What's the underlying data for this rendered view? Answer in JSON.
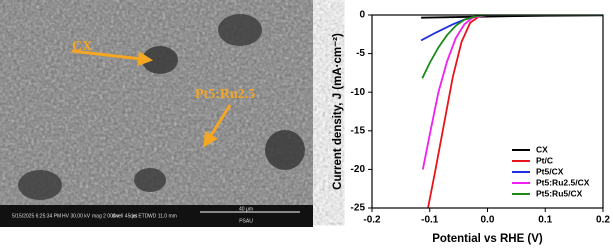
{
  "image": {
    "labels": [
      "CX",
      "Pt5:Ru2.5"
    ],
    "info": [
      "5/15/2025 6:25:34 PM",
      "HV 30.00 kV",
      "mag 2 000 x",
      "dwell 45 μs",
      "det ETD",
      "WD 11.0 mm",
      "40 μm",
      "PSAU"
    ]
  },
  "chart_data": {
    "type": "line",
    "xlabel": "Potential vs RHE (V)",
    "ylabel": "Current density, J (mA·cm⁻²)",
    "xlim": [
      -0.2,
      0.2
    ],
    "ylim": [
      -25,
      0
    ],
    "xticks": [
      -0.2,
      -0.1,
      {
        "value": 0,
        "label": "0.0"
      },
      0.1,
      0.2
    ],
    "yticks": [
      0,
      -5,
      -10,
      -15,
      -20,
      -25
    ],
    "legend": "lower right",
    "series": [
      {
        "name": "CX",
        "color": "#000000",
        "x": [
          -0.115,
          0,
          0.1,
          0.2
        ],
        "values": [
          -0.35,
          -0.2,
          -0.1,
          -0.05
        ]
      },
      {
        "name": "Pt/C",
        "color": "#e8141b",
        "x": [
          -0.103,
          -0.09,
          -0.075,
          -0.06,
          -0.045,
          -0.03,
          -0.015,
          0,
          0.1,
          0.2
        ],
        "values": [
          -25,
          -20,
          -14,
          -8,
          -3.5,
          -1,
          -0.2,
          0,
          0,
          0
        ]
      },
      {
        "name": "Pt5/CX",
        "color": "#1f2fe0",
        "x": [
          -0.115,
          -0.09,
          -0.06,
          -0.04,
          -0.02,
          0,
          0.2
        ],
        "values": [
          -3.3,
          -2.3,
          -1.2,
          -0.6,
          -0.2,
          0,
          0
        ]
      },
      {
        "name": "Pt5:Ru2.5/CX",
        "color": "#f21ef2",
        "x": [
          -0.112,
          -0.1,
          -0.085,
          -0.07,
          -0.055,
          -0.04,
          -0.025,
          0,
          0.2
        ],
        "values": [
          -20,
          -15.5,
          -10,
          -6,
          -3,
          -1.2,
          -0.3,
          0,
          0
        ]
      },
      {
        "name": "Pt5:Ru5/CX",
        "color": "#1a8a1a",
        "x": [
          -0.113,
          -0.1,
          -0.085,
          -0.07,
          -0.055,
          -0.04,
          -0.02,
          0,
          0.2
        ],
        "values": [
          -8.2,
          -6.2,
          -4.2,
          -2.6,
          -1.4,
          -0.6,
          -0.15,
          0,
          0
        ]
      }
    ]
  }
}
